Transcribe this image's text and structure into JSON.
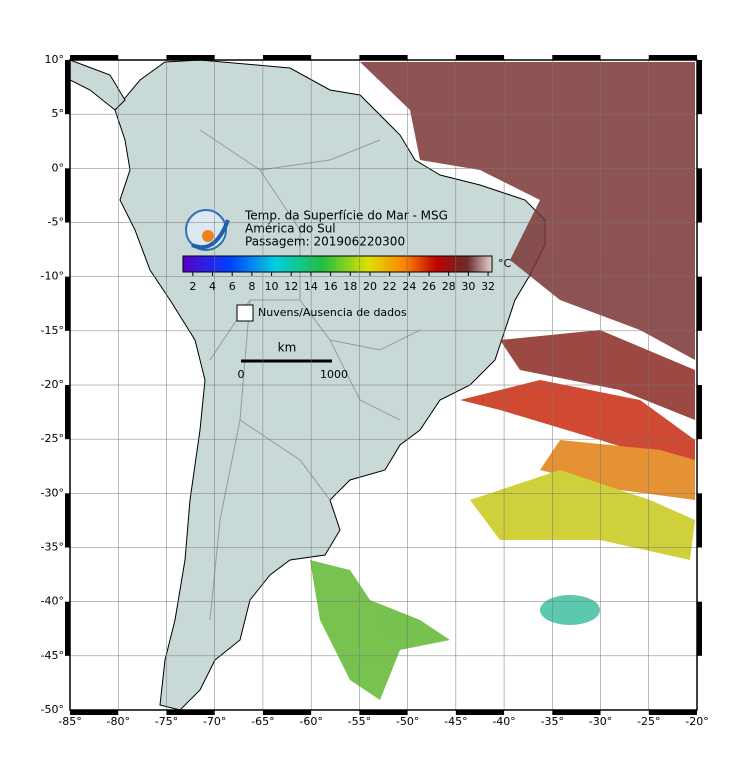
{
  "title_block": {
    "title": "Temp. da Superfície do Mar - MSG",
    "region": "América do Sul",
    "pass": "Passagem: 201906220300"
  },
  "colorbar": {
    "unit": "°C",
    "range": [
      1,
      32.4
    ],
    "ticks": [
      2,
      4,
      6,
      8,
      10,
      12,
      14,
      16,
      18,
      20,
      22,
      24,
      26,
      28,
      30,
      32
    ]
  },
  "legend": {
    "label": "Nuvens/Ausencia de dados"
  },
  "scale_bar": {
    "unit": "km",
    "start": "0",
    "end": "1000"
  },
  "map": {
    "xlim": [
      -85,
      -20
    ],
    "ylim": [
      -50,
      10
    ],
    "xticks": [
      {
        "value": -85,
        "label": "-85°"
      },
      {
        "value": -80,
        "label": "-80°"
      },
      {
        "value": -75,
        "label": "-75°"
      },
      {
        "value": -70,
        "label": "-70°"
      },
      {
        "value": -65,
        "label": "-65°"
      },
      {
        "value": -60,
        "label": "-60°"
      },
      {
        "value": -55,
        "label": "-55°"
      },
      {
        "value": -50,
        "label": "-50°"
      },
      {
        "value": -45,
        "label": "-45°"
      },
      {
        "value": -40,
        "label": "-40°"
      },
      {
        "value": -35,
        "label": "-35°"
      },
      {
        "value": -30,
        "label": "-30°"
      },
      {
        "value": -25,
        "label": "-25°"
      },
      {
        "value": -20,
        "label": "-20°"
      }
    ],
    "yticks": [
      {
        "value": 10,
        "label": "10°"
      },
      {
        "value": 5,
        "label": "5°"
      },
      {
        "value": 0,
        "label": "0°"
      },
      {
        "value": -5,
        "label": "-5°"
      },
      {
        "value": -10,
        "label": "-10°"
      },
      {
        "value": -15,
        "label": "-15°"
      },
      {
        "value": -20,
        "label": "-20°"
      },
      {
        "value": -25,
        "label": "-25°"
      },
      {
        "value": -30,
        "label": "-30°"
      },
      {
        "value": -35,
        "label": "-35°"
      },
      {
        "value": -40,
        "label": "-40°"
      },
      {
        "value": -45,
        "label": "-45°"
      },
      {
        "value": -50,
        "label": "-50°"
      }
    ]
  }
}
